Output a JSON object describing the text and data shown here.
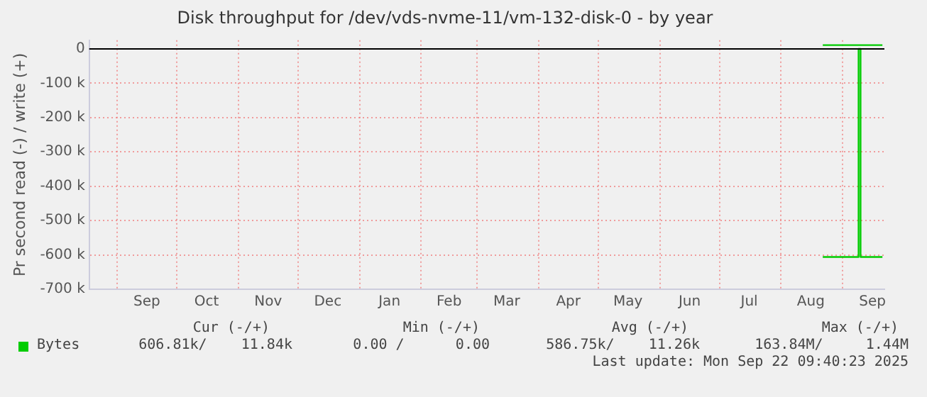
{
  "chart_data": {
    "type": "step",
    "title": "Disk throughput for /dev/vds-nvme-11/vm-132-disk-0 - by year",
    "ylabel": "Pr second read (-) / write (+)",
    "series": [
      {
        "name": "Bytes",
        "color": "#00cc00",
        "x": [
          "2025-08-22",
          "2025-09-09",
          "2025-09-10",
          "2025-09-21"
        ],
        "values": [
          -606000,
          0,
          -606000,
          -606000
        ]
      },
      {
        "color": "#00cc00",
        "x": [
          "2025-08-22",
          "2025-09-21"
        ],
        "values": [
          11000,
          11000
        ]
      }
    ],
    "xlim": [
      "2024-08-18",
      "2025-09-22"
    ],
    "xticks": [
      {
        "value": "2024-09-01",
        "label": null
      },
      {
        "value": "2024-09-16",
        "label": "Sep"
      },
      {
        "value": "2024-10-01",
        "label": null
      },
      {
        "value": "2024-10-16",
        "label": "Oct"
      },
      {
        "value": "2024-11-01",
        "label": null
      },
      {
        "value": "2024-11-16",
        "label": "Nov"
      },
      {
        "value": "2024-12-01",
        "label": null
      },
      {
        "value": "2024-12-16",
        "label": "Dec"
      },
      {
        "value": "2025-01-01",
        "label": null
      },
      {
        "value": "2025-01-16",
        "label": "Jan"
      },
      {
        "value": "2025-02-01",
        "label": null
      },
      {
        "value": "2025-02-15",
        "label": "Feb"
      },
      {
        "value": "2025-03-01",
        "label": null
      },
      {
        "value": "2025-03-16",
        "label": "Mar"
      },
      {
        "value": "2025-04-01",
        "label": null
      },
      {
        "value": "2025-04-16",
        "label": "Apr"
      },
      {
        "value": "2025-05-01",
        "label": null
      },
      {
        "value": "2025-05-16",
        "label": "May"
      },
      {
        "value": "2025-06-01",
        "label": null
      },
      {
        "value": "2025-06-16",
        "label": "Jun"
      },
      {
        "value": "2025-07-01",
        "label": null
      },
      {
        "value": "2025-07-16",
        "label": "Jul"
      },
      {
        "value": "2025-08-01",
        "label": null
      },
      {
        "value": "2025-08-16",
        "label": "Aug"
      },
      {
        "value": "2025-09-01",
        "label": null
      },
      {
        "value": "2025-09-16",
        "label": "Sep"
      }
    ],
    "ylim": [
      -700000,
      25000
    ],
    "yticks": [
      0,
      {
        "value": -100000,
        "label": "-100 k"
      },
      {
        "value": -200000,
        "label": "-200 k"
      },
      {
        "value": -300000,
        "label": "-300 k"
      },
      {
        "value": -400000,
        "label": "-400 k"
      },
      {
        "value": -500000,
        "label": "-500 k"
      },
      {
        "value": -600000,
        "label": "-600 k"
      },
      {
        "value": -700000,
        "label": "-700 k"
      }
    ],
    "ref_lines": [
      {
        "axis": "y",
        "value": 0,
        "color": "#000000"
      }
    ],
    "grid": true,
    "legend": "bottom",
    "annotations": [
      "Cur (-/+)",
      "Min (-/+)",
      "Avg (-/+)",
      "Max (-/+)",
      "606.81k/    11.84k",
      "0.00 /      0.00",
      "586.75k/    11.26k",
      "163.84M/     1.44M",
      "Last update: Mon Sep 22 09:40:23 2025"
    ]
  }
}
